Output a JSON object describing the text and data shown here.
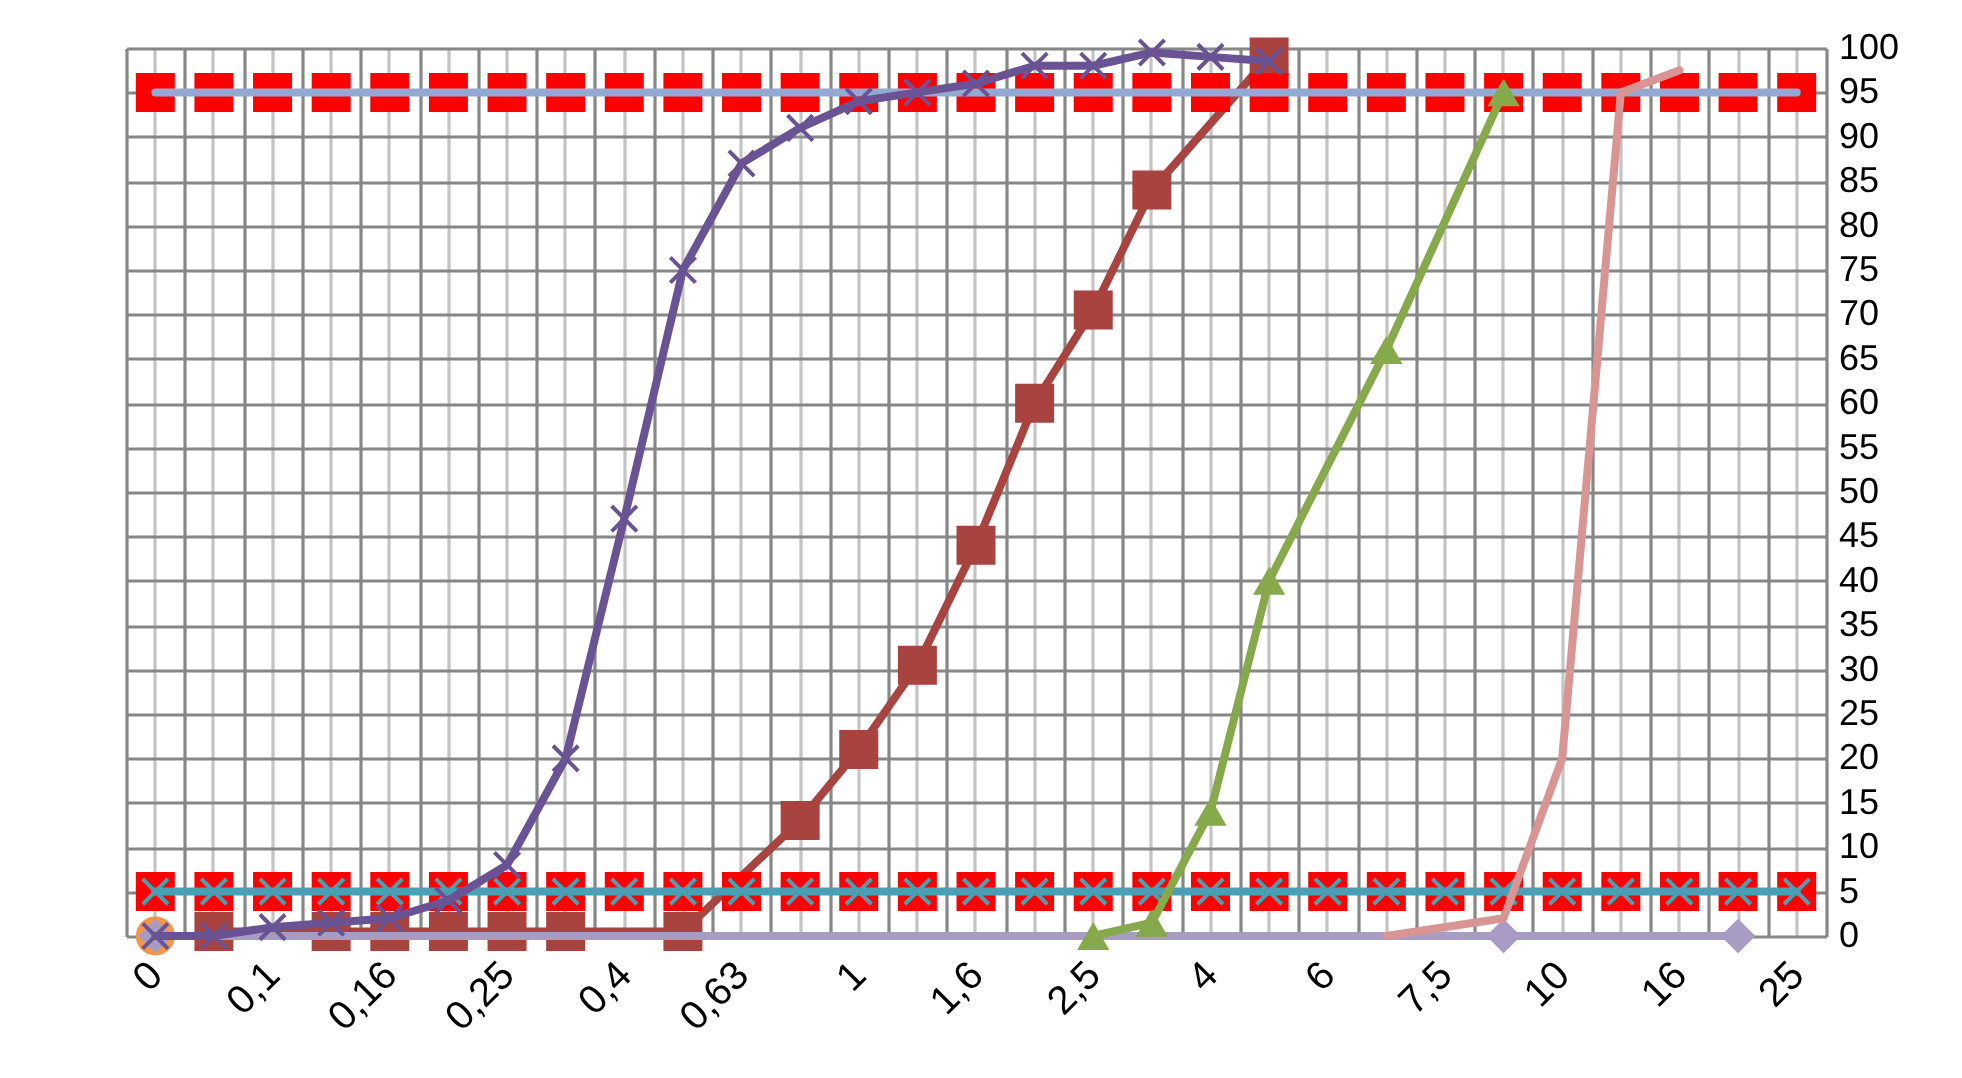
{
  "chart_data": {
    "type": "line",
    "categories": [
      "0",
      null,
      "0,1",
      null,
      "0,16",
      null,
      "0,25",
      null,
      "0,4",
      null,
      "0,63",
      null,
      "1",
      null,
      "1,6",
      null,
      "2,5",
      null,
      "4",
      null,
      "6",
      null,
      "7,5",
      null,
      "10",
      null,
      "16",
      null,
      "25"
    ],
    "ylim": [
      0,
      100
    ],
    "yticks": [
      0,
      5,
      10,
      15,
      20,
      25,
      30,
      35,
      40,
      45,
      50,
      55,
      60,
      65,
      70,
      75,
      80,
      85,
      90,
      95,
      100
    ],
    "grid": true,
    "series": [
      {
        "marker": "square",
        "color": "#a8433f",
        "values": [
          null,
          0.5,
          null,
          0.5,
          0.5,
          0.5,
          0.5,
          0.5,
          null,
          0.5,
          null,
          13,
          21,
          30.5,
          44,
          60,
          70.5,
          84,
          null,
          99,
          null,
          null,
          null,
          null,
          null,
          null,
          null,
          null,
          null
        ]
      },
      {
        "type": "scatter",
        "marker": "square",
        "color": "#ff0000",
        "values": [
          95,
          95,
          95,
          95,
          95,
          95,
          95,
          95,
          95,
          95,
          95,
          95,
          95,
          95,
          95,
          95,
          95,
          95,
          95,
          95,
          95,
          95,
          95,
          95,
          95,
          95,
          95,
          95,
          95
        ]
      },
      {
        "marker": "none",
        "color": "#93a9d1",
        "values": [
          95,
          95,
          95,
          95,
          95,
          95,
          95,
          95,
          95,
          95,
          95,
          95,
          95,
          95,
          95,
          95,
          95,
          95,
          95,
          95,
          95,
          95,
          95,
          95,
          95,
          95,
          95,
          95,
          95
        ]
      },
      {
        "type": "scatter",
        "marker": "square",
        "color": "#ff0000",
        "values": [
          5,
          5,
          5,
          5,
          5,
          5,
          5,
          5,
          5,
          5,
          5,
          5,
          5,
          5,
          5,
          5,
          5,
          5,
          5,
          5,
          5,
          5,
          5,
          5,
          5,
          5,
          5,
          5,
          5
        ]
      },
      {
        "marker": "cross",
        "color": "#4a9fb5",
        "values": [
          5,
          5,
          5,
          5,
          5,
          5,
          5,
          5,
          5,
          5,
          5,
          5,
          5,
          5,
          5,
          5,
          5,
          5,
          5,
          5,
          5,
          5,
          5,
          5,
          5,
          5,
          5,
          5,
          5
        ]
      },
      {
        "type": "scatter",
        "marker": "circle",
        "color": "#f79646",
        "values": [
          0,
          null,
          null,
          null,
          null,
          null,
          null,
          null,
          null,
          null,
          null,
          null,
          null,
          null,
          null,
          null,
          null,
          null,
          null,
          null,
          null,
          null,
          null,
          null,
          null,
          null,
          null,
          null,
          null
        ]
      },
      {
        "marker": "none",
        "color": "#a89cc4",
        "values": [
          0,
          0,
          0,
          0,
          0,
          0,
          0,
          0,
          0,
          0,
          0,
          0,
          0,
          0,
          0,
          0,
          0,
          0,
          0,
          0,
          0,
          0,
          0,
          0,
          0,
          0,
          0,
          0,
          null
        ]
      },
      {
        "type": "scatter",
        "marker": "diamond",
        "color": "#a89cc4",
        "values": [
          0,
          null,
          null,
          null,
          null,
          null,
          null,
          null,
          null,
          null,
          null,
          null,
          null,
          null,
          null,
          null,
          null,
          null,
          null,
          null,
          null,
          null,
          null,
          0,
          null,
          null,
          null,
          0,
          null
        ]
      },
      {
        "marker": "cross",
        "color": "#6a5394",
        "values": [
          0,
          0,
          1,
          1.5,
          2,
          4,
          8,
          20,
          47,
          75,
          87,
          91,
          94,
          95,
          96,
          98,
          98,
          99.5,
          99,
          98.5,
          null,
          null,
          null,
          null,
          null,
          null,
          null,
          null,
          null
        ]
      },
      {
        "marker": "triangle",
        "color": "#86a94c",
        "values": [
          null,
          null,
          null,
          null,
          null,
          null,
          null,
          null,
          null,
          null,
          null,
          null,
          null,
          null,
          null,
          null,
          0,
          1.5,
          14,
          40,
          null,
          66,
          null,
          95,
          null,
          null,
          null,
          null,
          null
        ]
      },
      {
        "marker": "none",
        "color": "#d99594",
        "values": [
          null,
          null,
          null,
          null,
          null,
          null,
          null,
          null,
          null,
          null,
          null,
          null,
          null,
          null,
          null,
          null,
          null,
          null,
          null,
          null,
          null,
          0,
          null,
          2,
          20,
          95,
          97.5,
          null,
          null
        ]
      }
    ]
  }
}
